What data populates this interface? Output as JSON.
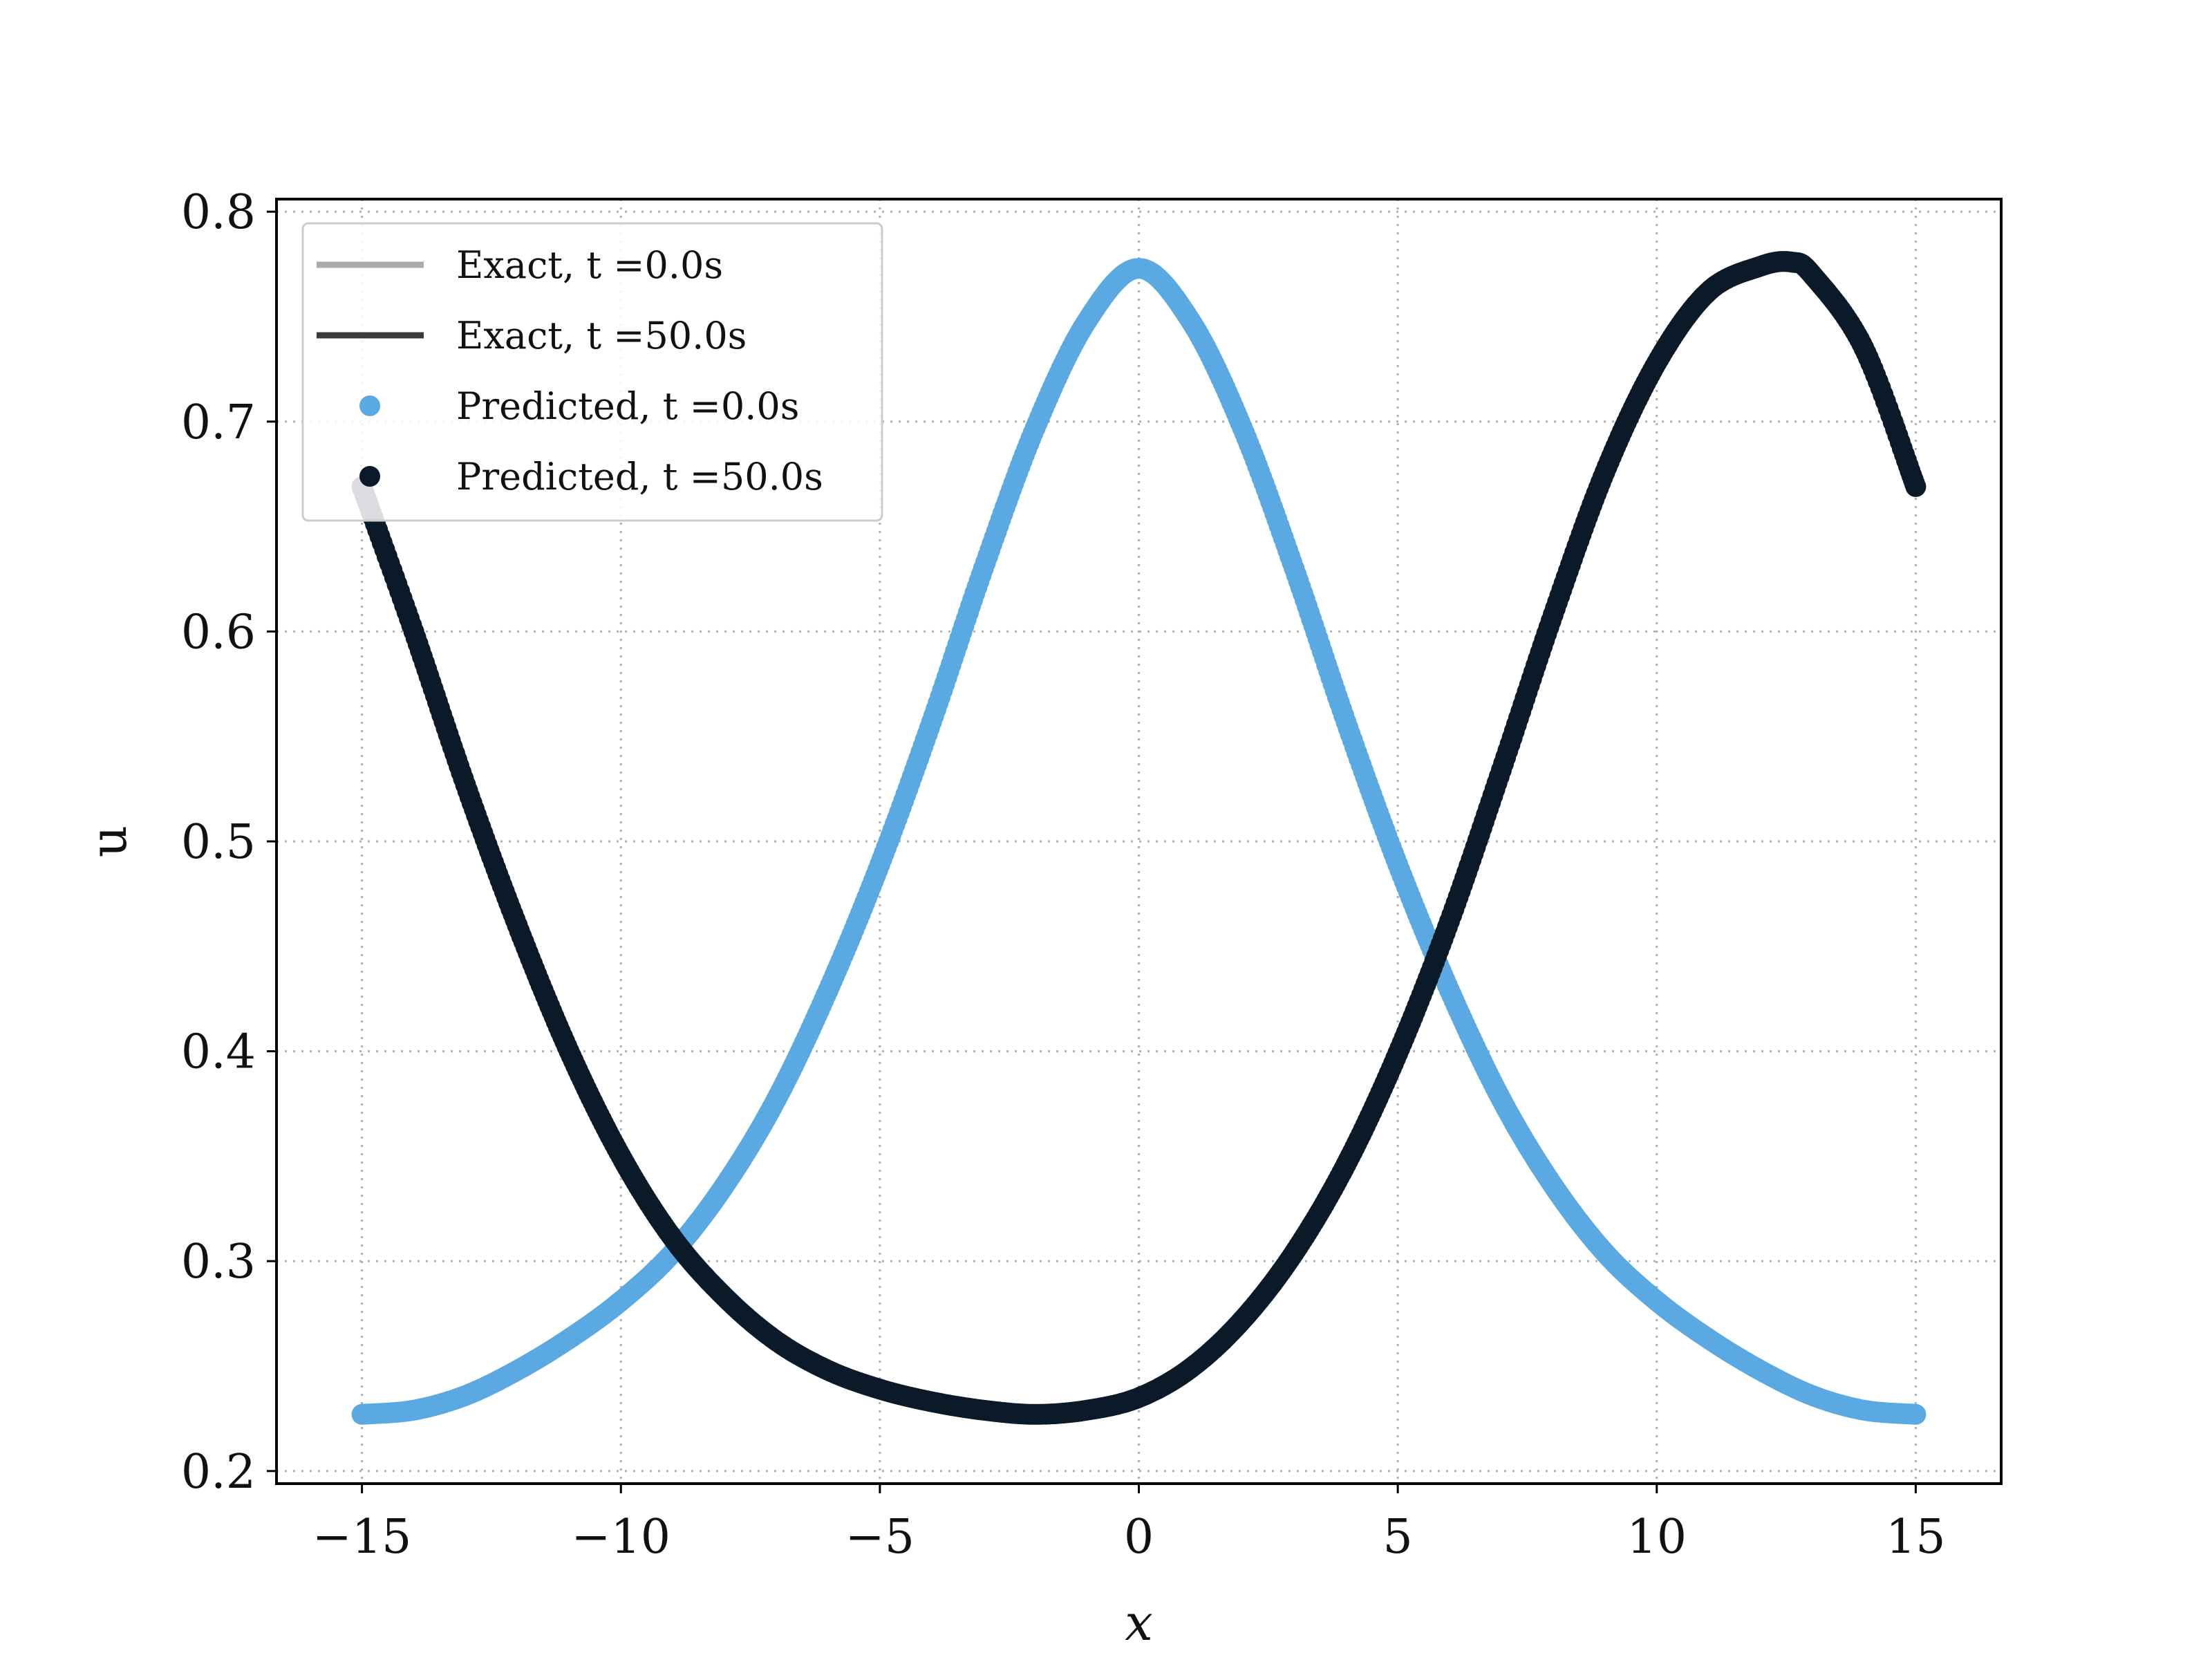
{
  "chart_data": {
    "type": "line",
    "title": "",
    "xlabel": "x",
    "ylabel": "u",
    "xlim": [
      -16.65,
      16.65
    ],
    "ylim": [
      0.194,
      0.806
    ],
    "xticks": [
      -15,
      -10,
      -5,
      0,
      5,
      10,
      15
    ],
    "yticks": [
      0.2,
      0.3,
      0.4,
      0.5,
      0.6,
      0.7,
      0.8
    ],
    "xtick_labels": [
      "−15",
      "−10",
      "−5",
      "0",
      "5",
      "10",
      "15"
    ],
    "ytick_labels": [
      "0.2",
      "0.3",
      "0.4",
      "0.5",
      "0.6",
      "0.7",
      "0.8"
    ],
    "grid": true,
    "legend_position": "top-left",
    "legend": [
      {
        "text": "Exact, t =0.0s",
        "marker": "line",
        "color": "#aaaaaa"
      },
      {
        "text": "Exact, t =50.0s",
        "marker": "line",
        "color": "#3a3a3a"
      },
      {
        "text": "Predicted, t =0.0s",
        "marker": "dot",
        "color": "#5aa9e2"
      },
      {
        "text": "Predicted, t =50.0s",
        "marker": "dot",
        "color": "#0a1a29"
      }
    ],
    "series": [
      {
        "name": "Exact, t =0.0s",
        "kind": "line",
        "color": "#aaaaaa",
        "x": [
          -15,
          -14,
          -13,
          -12,
          -11,
          -10,
          -9,
          -8,
          -7,
          -6,
          -5,
          -4,
          -3,
          -2,
          -1,
          0,
          1,
          2,
          3,
          4,
          5,
          6,
          7,
          8,
          9,
          10,
          11,
          12,
          13,
          14,
          15
        ],
        "y": [
          0.227,
          0.229,
          0.236,
          0.248,
          0.263,
          0.281,
          0.304,
          0.336,
          0.377,
          0.429,
          0.489,
          0.557,
          0.63,
          0.697,
          0.748,
          0.773,
          0.748,
          0.697,
          0.63,
          0.557,
          0.489,
          0.429,
          0.377,
          0.336,
          0.304,
          0.281,
          0.263,
          0.248,
          0.236,
          0.229,
          0.227
        ]
      },
      {
        "name": "Exact, t =50.0s",
        "kind": "line",
        "color": "#3a3a3a",
        "x": [
          -15,
          -14,
          -13,
          -12,
          -11,
          -10,
          -9,
          -8,
          -7,
          -6,
          -5,
          -4,
          -3,
          -2,
          -1,
          0,
          1,
          2,
          3,
          4,
          5,
          6,
          7,
          8,
          9,
          10,
          11,
          12,
          12.6,
          13,
          14,
          15
        ],
        "y": [
          0.669,
          0.6,
          0.527,
          0.46,
          0.4,
          0.35,
          0.311,
          0.283,
          0.262,
          0.248,
          0.239,
          0.233,
          0.229,
          0.227,
          0.229,
          0.235,
          0.249,
          0.272,
          0.304,
          0.346,
          0.399,
          0.462,
          0.534,
          0.608,
          0.676,
          0.728,
          0.762,
          0.774,
          0.776,
          0.77,
          0.735,
          0.669
        ]
      },
      {
        "name": "Predicted, t =0.0s",
        "kind": "dots",
        "color": "#5aa9e2",
        "x": [
          -15,
          -14,
          -13,
          -12,
          -11,
          -10,
          -9,
          -8,
          -7,
          -6,
          -5,
          -4,
          -3,
          -2,
          -1,
          0,
          1,
          2,
          3,
          4,
          5,
          6,
          7,
          8,
          9,
          10,
          11,
          12,
          13,
          14,
          15
        ],
        "y": [
          0.227,
          0.229,
          0.236,
          0.248,
          0.263,
          0.281,
          0.304,
          0.336,
          0.377,
          0.429,
          0.489,
          0.557,
          0.63,
          0.697,
          0.748,
          0.773,
          0.748,
          0.697,
          0.63,
          0.557,
          0.489,
          0.429,
          0.377,
          0.336,
          0.304,
          0.281,
          0.263,
          0.248,
          0.236,
          0.229,
          0.227
        ]
      },
      {
        "name": "Predicted, t =50.0s",
        "kind": "dots",
        "color": "#0a1a29",
        "x": [
          -15,
          -14,
          -13,
          -12,
          -11,
          -10,
          -9,
          -8,
          -7,
          -6,
          -5,
          -4,
          -3,
          -2,
          -1,
          0,
          1,
          2,
          3,
          4,
          5,
          6,
          7,
          8,
          9,
          10,
          11,
          12,
          12.6,
          13,
          14,
          15
        ],
        "y": [
          0.669,
          0.6,
          0.527,
          0.46,
          0.4,
          0.35,
          0.311,
          0.283,
          0.262,
          0.248,
          0.239,
          0.233,
          0.229,
          0.227,
          0.229,
          0.235,
          0.249,
          0.272,
          0.304,
          0.346,
          0.399,
          0.462,
          0.534,
          0.608,
          0.676,
          0.728,
          0.762,
          0.774,
          0.776,
          0.77,
          0.735,
          0.669
        ]
      }
    ]
  }
}
